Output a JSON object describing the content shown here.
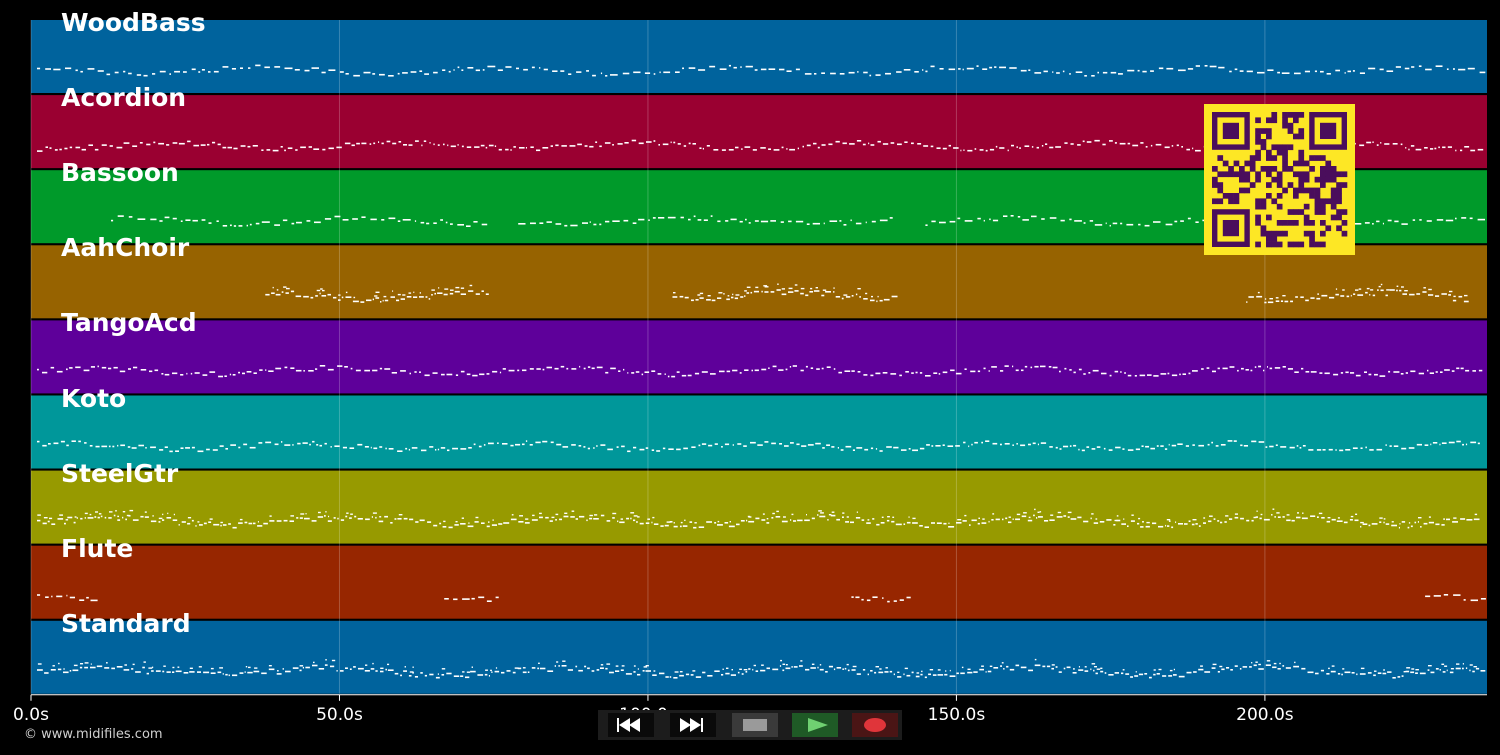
{
  "tracks": [
    {
      "name": "WoodBass",
      "color": "#00639d",
      "density": "sparse",
      "segments": [
        [
          0,
          236
        ]
      ]
    },
    {
      "name": "Acordion",
      "color": "#9a0031",
      "density": "medium",
      "segments": [
        [
          0,
          236
        ]
      ]
    },
    {
      "name": "Bassoon",
      "color": "#009a2a",
      "density": "sparse",
      "segments": [
        [
          12,
          75
        ],
        [
          78,
          141
        ],
        [
          144,
          236
        ]
      ]
    },
    {
      "name": "AahChoir",
      "color": "#976300",
      "density": "dense",
      "segments": [
        [
          37,
          75
        ],
        [
          103,
          141
        ],
        [
          196,
          234
        ]
      ]
    },
    {
      "name": "TangoAcd",
      "color": "#5e009a",
      "density": "medium",
      "segments": [
        [
          0,
          236
        ]
      ]
    },
    {
      "name": "Koto",
      "color": "#00979a",
      "density": "medium",
      "segments": [
        [
          0,
          236
        ]
      ]
    },
    {
      "name": "SteelGtr",
      "color": "#979a00",
      "density": "dense",
      "segments": [
        [
          0,
          236
        ]
      ]
    },
    {
      "name": "Flute",
      "color": "#972600",
      "density": "sparse",
      "segments": [
        [
          0,
          11
        ],
        [
          66,
          77
        ],
        [
          132,
          143
        ],
        [
          225,
          236
        ]
      ]
    },
    {
      "name": "Standard",
      "color": "#00639d",
      "density": "dense",
      "segments": [
        [
          0,
          236
        ]
      ]
    }
  ],
  "axis": {
    "x_min": 0,
    "x_max": 236,
    "unit": "s",
    "ticks": [
      {
        "value": 0,
        "label": "0.0s"
      },
      {
        "value": 50,
        "label": "50.0s"
      },
      {
        "value": 100,
        "label": "100.0s"
      },
      {
        "value": 150,
        "label": "150.0s"
      },
      {
        "value": 200,
        "label": "200.0s"
      }
    ],
    "grid": true
  },
  "copyright": "© www.midifiles.com",
  "transport": {
    "buttons": [
      {
        "name": "rewind-button",
        "icon": "rewind-icon"
      },
      {
        "name": "fast-forward-button",
        "icon": "fast-forward-icon"
      },
      {
        "name": "stop-button",
        "icon": "stop-icon"
      },
      {
        "name": "play-button",
        "icon": "play-icon"
      },
      {
        "name": "record-button",
        "icon": "record-icon"
      }
    ]
  },
  "qr_code": {
    "icon": "qr-code-icon",
    "fg": "#4a0e5c",
    "bg": "#fde725"
  },
  "colors": {
    "background": "#000000",
    "notes": "#ffffff",
    "grid": "#ffffff"
  }
}
